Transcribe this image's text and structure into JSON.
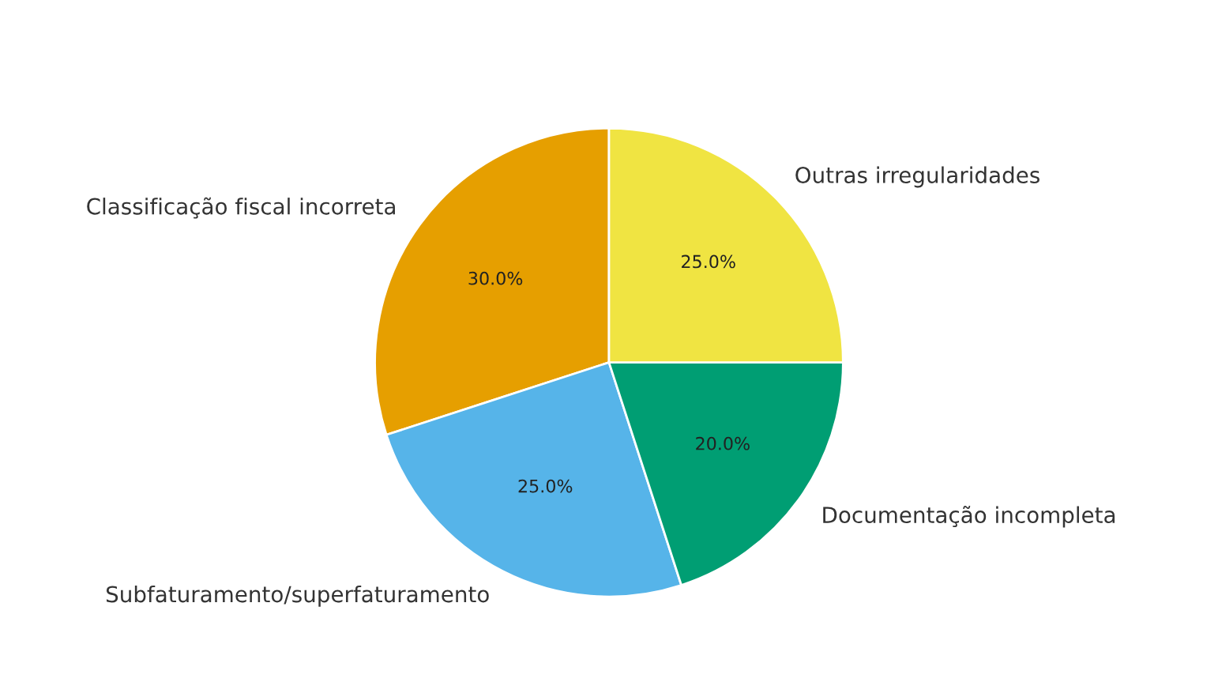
{
  "chart_data": {
    "type": "pie",
    "categories": [
      "Classificação fiscal incorreta",
      "Subfaturamento/superfaturamento",
      "Documentação incompleta",
      "Outras irregularidades"
    ],
    "values": [
      30,
      25,
      20,
      25
    ],
    "value_labels": [
      "30.0%",
      "25.0%",
      "20.0%",
      "25.0%"
    ],
    "colors": [
      "#e69f00",
      "#56b4e9",
      "#009e73",
      "#f0e442"
    ]
  }
}
